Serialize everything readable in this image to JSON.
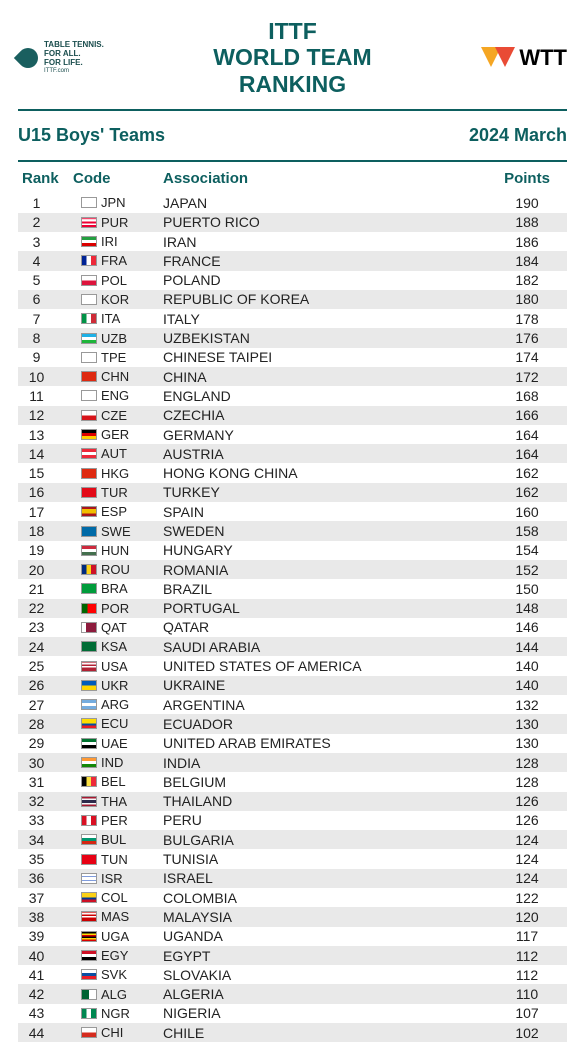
{
  "header": {
    "logo_text_line1": "TABLE TENNIS.",
    "logo_text_line2": "FOR ALL.",
    "logo_text_line3": "FOR LIFE.",
    "logo_text_line4": "ITTF.com",
    "title_line1": "ITTF",
    "title_line2": "WORLD TEAM",
    "title_line3": "RANKING",
    "wtt_label": "WTT"
  },
  "subheader": {
    "category": "U15  Boys' Teams",
    "date": "2024 March"
  },
  "columns": {
    "rank": "Rank",
    "code": "Code",
    "association": "Association",
    "points": "Points"
  },
  "flag_colors": {
    "JPN": "linear-gradient(#fff,#fff)",
    "PUR": "linear-gradient(#e03,#fff 20% 40%,#e03 40% 60%,#fff 60% 80%,#e03 80%)",
    "IRI": "linear-gradient(#239f40 33%,#fff 33% 66%,#da0000 66%)",
    "FRA": "linear-gradient(90deg,#002395 33%,#fff 33% 66%,#ed2939 66%)",
    "POL": "linear-gradient(#fff 50%,#dc143c 50%)",
    "KOR": "linear-gradient(#fff,#fff)",
    "ITA": "linear-gradient(90deg,#009246 33%,#fff 33% 66%,#ce2b37 66%)",
    "UZB": "linear-gradient(#1eb0e6 33%,#fff 33% 66%,#1eb53a 66%)",
    "TPE": "linear-gradient(#fff,#fff)",
    "CHN": "linear-gradient(#de2910,#de2910)",
    "ENG": "linear-gradient(#fff,#fff)",
    "CZE": "linear-gradient(#fff 50%,#d7141a 50%)",
    "GER": "linear-gradient(#000 33%,#dd0000 33% 66%,#ffce00 66%)",
    "AUT": "linear-gradient(#ed2939 33%,#fff 33% 66%,#ed2939 66%)",
    "HKG": "linear-gradient(#de2910,#de2910)",
    "TUR": "linear-gradient(#e30a17,#e30a17)",
    "ESP": "linear-gradient(#aa151b 25%,#f1bf00 25% 75%,#aa151b 75%)",
    "SWE": "linear-gradient(#006aa7,#006aa7)",
    "HUN": "linear-gradient(#cd2a3e 33%,#fff 33% 66%,#436f4d 66%)",
    "ROU": "linear-gradient(90deg,#002b7f 33%,#fcd116 33% 66%,#ce1126 66%)",
    "BRA": "linear-gradient(#009c3b,#009c3b)",
    "POR": "linear-gradient(90deg,#006600 40%,#ff0000 40%)",
    "QAT": "linear-gradient(90deg,#fff 30%,#8d1b3d 30%)",
    "KSA": "linear-gradient(#006c35,#006c35)",
    "USA": "linear-gradient(#b22234,#fff 15% 30%,#b22234 30% 45%,#fff 45% 60%,#b22234 60%)",
    "UKR": "linear-gradient(#005bbb 50%,#ffd500 50%)",
    "ARG": "linear-gradient(#74acdf 33%,#fff 33% 66%,#74acdf 66%)",
    "ECU": "linear-gradient(#ffdd00 50%,#034ea2 50% 75%,#ed1c24 75%)",
    "UAE": "linear-gradient(#00732f 33%,#fff 33% 66%,#000 66%)",
    "IND": "linear-gradient(#ff9933 33%,#fff 33% 66%,#138808 66%)",
    "BEL": "linear-gradient(90deg,#000 33%,#fae042 33% 66%,#ed2939 66%)",
    "THA": "linear-gradient(#a51931 16%,#f4f5f8 16% 33%,#2d2a4a 33% 66%,#f4f5f8 66% 83%,#a51931 83%)",
    "PER": "linear-gradient(90deg,#d91023 33%,#fff 33% 66%,#d91023 66%)",
    "BUL": "linear-gradient(#fff 33%,#00966e 33% 66%,#d62612 66%)",
    "TUN": "linear-gradient(#e70013,#e70013)",
    "ISR": "linear-gradient(#fff 20%,#0038b8 20% 30%,#fff 30% 70%,#0038b8 70% 80%,#fff 80%)",
    "COL": "linear-gradient(#fcd116 50%,#003893 50% 75%,#ce1126 75%)",
    "MAS": "linear-gradient(#cc0001,#fff 15% 30%,#cc0001 30% 45%,#fff 45% 60%,#cc0001 60%)",
    "UGA": "linear-gradient(#000 16%,#fcdc04 16% 33%,#d90000 33% 50%,#000 50% 66%,#fcdc04 66% 83%,#d90000 83%)",
    "EGY": "linear-gradient(#ce1126 33%,#fff 33% 66%,#000 66%)",
    "SVK": "linear-gradient(#fff 33%,#0b4ea2 33% 66%,#ee1c25 66%)",
    "ALG": "linear-gradient(90deg,#006233 50%,#fff 50%)",
    "NGR": "linear-gradient(90deg,#008751 33%,#fff 33% 66%,#008751 66%)",
    "CHI": "linear-gradient(#fff 50%,#d52b1e 50%)"
  },
  "rows": [
    {
      "rank": 1,
      "code": "JPN",
      "association": "JAPAN",
      "points": 190
    },
    {
      "rank": 2,
      "code": "PUR",
      "association": "PUERTO RICO",
      "points": 188
    },
    {
      "rank": 3,
      "code": "IRI",
      "association": "IRAN",
      "points": 186
    },
    {
      "rank": 4,
      "code": "FRA",
      "association": "FRANCE",
      "points": 184
    },
    {
      "rank": 5,
      "code": "POL",
      "association": "POLAND",
      "points": 182
    },
    {
      "rank": 6,
      "code": "KOR",
      "association": "REPUBLIC OF KOREA",
      "points": 180
    },
    {
      "rank": 7,
      "code": "ITA",
      "association": "ITALY",
      "points": 178
    },
    {
      "rank": 8,
      "code": "UZB",
      "association": "UZBEKISTAN",
      "points": 176
    },
    {
      "rank": 9,
      "code": "TPE",
      "association": "CHINESE TAIPEI",
      "points": 174
    },
    {
      "rank": 10,
      "code": "CHN",
      "association": "CHINA",
      "points": 172
    },
    {
      "rank": 11,
      "code": "ENG",
      "association": "ENGLAND",
      "points": 168
    },
    {
      "rank": 12,
      "code": "CZE",
      "association": "CZECHIA",
      "points": 166
    },
    {
      "rank": 13,
      "code": "GER",
      "association": "GERMANY",
      "points": 164
    },
    {
      "rank": 14,
      "code": "AUT",
      "association": "AUSTRIA",
      "points": 164
    },
    {
      "rank": 15,
      "code": "HKG",
      "association": "HONG KONG CHINA",
      "points": 162
    },
    {
      "rank": 16,
      "code": "TUR",
      "association": "TURKEY",
      "points": 162
    },
    {
      "rank": 17,
      "code": "ESP",
      "association": "SPAIN",
      "points": 160
    },
    {
      "rank": 18,
      "code": "SWE",
      "association": "SWEDEN",
      "points": 158
    },
    {
      "rank": 19,
      "code": "HUN",
      "association": "HUNGARY",
      "points": 154
    },
    {
      "rank": 20,
      "code": "ROU",
      "association": "ROMANIA",
      "points": 152
    },
    {
      "rank": 21,
      "code": "BRA",
      "association": "BRAZIL",
      "points": 150
    },
    {
      "rank": 22,
      "code": "POR",
      "association": "PORTUGAL",
      "points": 148
    },
    {
      "rank": 23,
      "code": "QAT",
      "association": "QATAR",
      "points": 146
    },
    {
      "rank": 24,
      "code": "KSA",
      "association": "SAUDI ARABIA",
      "points": 144
    },
    {
      "rank": 25,
      "code": "USA",
      "association": "UNITED STATES OF AMERICA",
      "points": 140
    },
    {
      "rank": 26,
      "code": "UKR",
      "association": "UKRAINE",
      "points": 140
    },
    {
      "rank": 27,
      "code": "ARG",
      "association": "ARGENTINA",
      "points": 132
    },
    {
      "rank": 28,
      "code": "ECU",
      "association": "ECUADOR",
      "points": 130
    },
    {
      "rank": 29,
      "code": "UAE",
      "association": "UNITED ARAB EMIRATES",
      "points": 130
    },
    {
      "rank": 30,
      "code": "IND",
      "association": "INDIA",
      "points": 128
    },
    {
      "rank": 31,
      "code": "BEL",
      "association": "BELGIUM",
      "points": 128
    },
    {
      "rank": 32,
      "code": "THA",
      "association": "THAILAND",
      "points": 126
    },
    {
      "rank": 33,
      "code": "PER",
      "association": "PERU",
      "points": 126
    },
    {
      "rank": 34,
      "code": "BUL",
      "association": "BULGARIA",
      "points": 124
    },
    {
      "rank": 35,
      "code": "TUN",
      "association": "TUNISIA",
      "points": 124
    },
    {
      "rank": 36,
      "code": "ISR",
      "association": "ISRAEL",
      "points": 124
    },
    {
      "rank": 37,
      "code": "COL",
      "association": "COLOMBIA",
      "points": 122
    },
    {
      "rank": 38,
      "code": "MAS",
      "association": "MALAYSIA",
      "points": 120
    },
    {
      "rank": 39,
      "code": "UGA",
      "association": "UGANDA",
      "points": 117
    },
    {
      "rank": 40,
      "code": "EGY",
      "association": "EGYPT",
      "points": 112
    },
    {
      "rank": 41,
      "code": "SVK",
      "association": "SLOVAKIA",
      "points": 112
    },
    {
      "rank": 42,
      "code": "ALG",
      "association": "ALGERIA",
      "points": 110
    },
    {
      "rank": 43,
      "code": "NGR",
      "association": "NIGERIA",
      "points": 107
    },
    {
      "rank": 44,
      "code": "CHI",
      "association": "CHILE",
      "points": 102
    }
  ]
}
